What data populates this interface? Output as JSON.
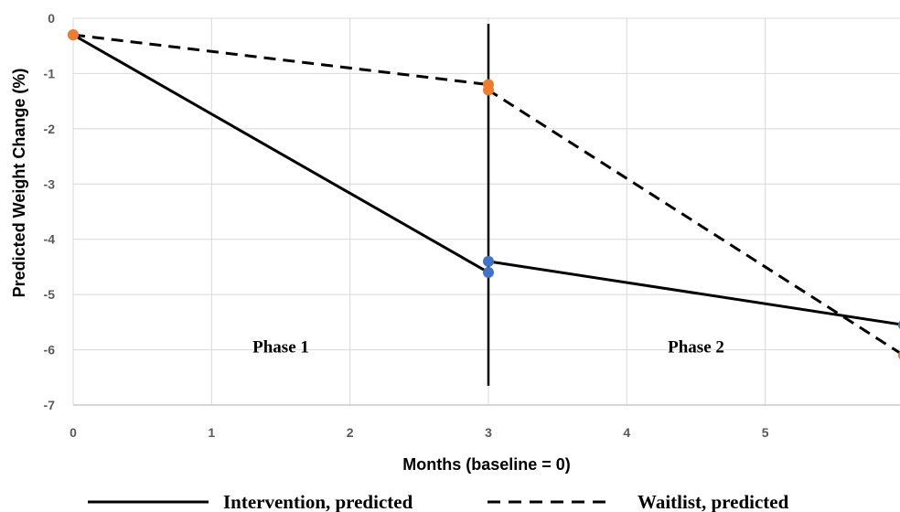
{
  "chart_data": {
    "type": "line",
    "xlabel": "Months (baseline = 0)",
    "ylabel": "Predicted Weight Change (%)",
    "xlim": [
      0,
      6
    ],
    "ylim": [
      -7,
      0
    ],
    "x_ticks": [
      0,
      1,
      2,
      3,
      4,
      5
    ],
    "y_ticks": [
      0,
      -1,
      -2,
      -3,
      -4,
      -5,
      -6,
      -7
    ],
    "grid": true,
    "legend_placement": "bottom",
    "annotations": [
      {
        "text": "Phase 1",
        "x": 1.5,
        "y": -6.05
      },
      {
        "text": "Phase 2",
        "x": 4.5,
        "y": -6.05
      }
    ],
    "divider_line": {
      "x": 3,
      "y_from": -0.1,
      "y_to": -6.65
    },
    "series": [
      {
        "name": "Intervention, predicted",
        "style": "solid",
        "marker_color": "#4472c4",
        "line_x": [
          0,
          3,
          3,
          6
        ],
        "line_y": [
          -0.3,
          -4.6,
          -4.4,
          -5.55
        ],
        "points": [
          {
            "x": 0,
            "y": -0.3
          },
          {
            "x": 3,
            "y": -4.4
          },
          {
            "x": 3,
            "y": -4.6
          },
          {
            "x": 6,
            "y": -5.55
          }
        ]
      },
      {
        "name": "Waitlist, predicted",
        "style": "dashed",
        "marker_color": "#ed7d31",
        "line_x": [
          0,
          3,
          3,
          6
        ],
        "line_y": [
          -0.3,
          -1.2,
          -1.3,
          -6.1
        ],
        "points": [
          {
            "x": 0,
            "y": -0.3
          },
          {
            "x": 3,
            "y": -1.2
          },
          {
            "x": 3,
            "y": -1.3
          },
          {
            "x": 6,
            "y": -6.1
          }
        ]
      }
    ]
  }
}
